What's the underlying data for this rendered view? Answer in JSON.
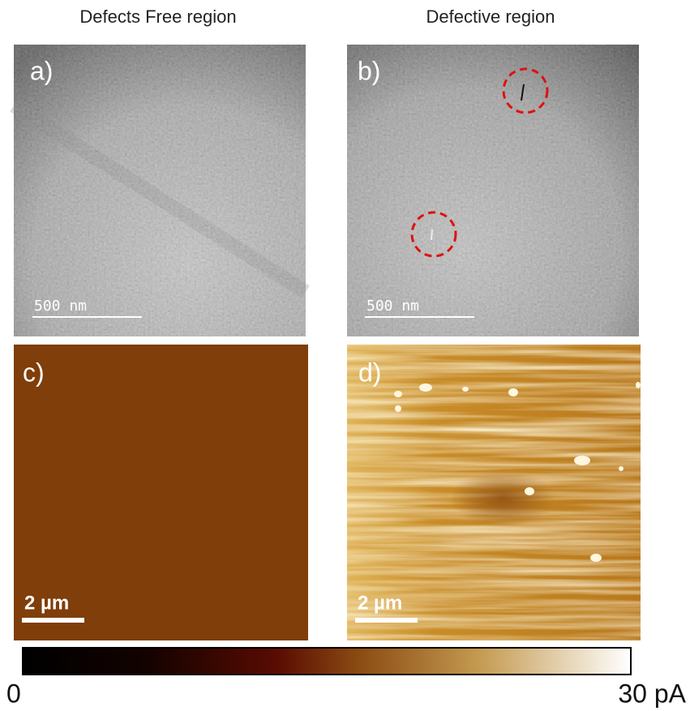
{
  "columns": {
    "left": {
      "title": "Defects Free region"
    },
    "right": {
      "title": "Defective region"
    }
  },
  "panels": [
    {
      "label": "a)",
      "scale_bar": "500 nm"
    },
    {
      "label": "b)",
      "scale_bar": "500 nm"
    },
    {
      "label": "c)",
      "scale_bar": "2 µm"
    },
    {
      "label": "d)",
      "scale_bar": "2 µm"
    }
  ],
  "colorbar": {
    "min_label": "0",
    "max_label": "30 pA"
  }
}
